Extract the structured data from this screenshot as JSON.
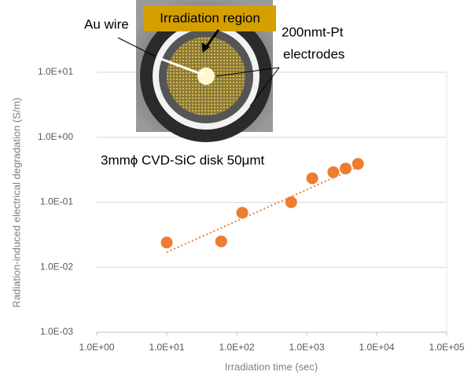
{
  "chart_data": {
    "type": "scatter",
    "x_label": "Irradiation time (sec)",
    "y_label": "Radiation-induced electrical degradation (S/m)",
    "x_log": true,
    "y_log": true,
    "grid": true,
    "series": [
      {
        "color": "#ed7d31",
        "x": [
          10,
          60,
          120,
          600,
          1200,
          2400,
          3600,
          5400
        ],
        "values": [
          0.024,
          0.025,
          0.069,
          0.1,
          0.234,
          0.29,
          0.33,
          0.39
        ]
      }
    ],
    "trendline": {
      "color": "#ed7d31",
      "x": [
        10,
        6000
      ],
      "values": [
        0.017,
        0.37
      ]
    },
    "xlim": [
      1,
      100000
    ],
    "xticks": [
      {
        "value": 1,
        "label": "1.0E+00"
      },
      {
        "value": 10,
        "label": "1.0E+01"
      },
      {
        "value": 100,
        "label": "1.0E+02"
      },
      {
        "value": 1000,
        "label": "1.0E+03"
      },
      {
        "value": 10000,
        "label": "1.0E+04"
      },
      {
        "value": 100000,
        "label": "1.0E+05"
      }
    ],
    "ylim": [
      0.001,
      10
    ],
    "yticks": [
      {
        "value": 0.001,
        "label": "1.0E-03"
      },
      {
        "value": 0.01,
        "label": "1.0E-02"
      },
      {
        "value": 0.1,
        "label": "1.0E-01"
      },
      {
        "value": 1,
        "label": "1.0E+00"
      },
      {
        "value": 10,
        "label": "1.0E+01"
      }
    ],
    "annotations": [
      "Au wire",
      "Irradiation region",
      "200nmt-Pt",
      "electrodes",
      "3mmϕ CVD-SiC disk 50μmt"
    ]
  }
}
